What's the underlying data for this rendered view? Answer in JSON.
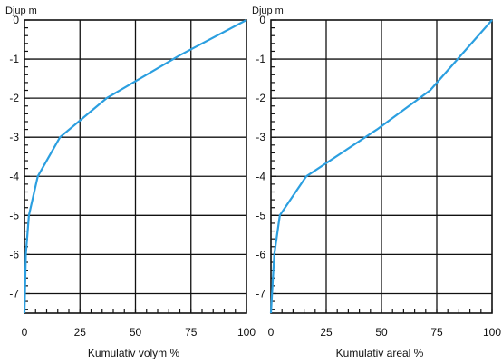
{
  "chart_data": [
    {
      "type": "line",
      "ylabel": "Djup m",
      "xlabel": "Kumulativ volym %",
      "xlim": [
        0,
        100
      ],
      "ylim": [
        -7.5,
        0
      ],
      "xticks": [
        0,
        25,
        50,
        75,
        100
      ],
      "yticks": [
        0,
        -1,
        -2,
        -3,
        -4,
        -5,
        -6,
        -7
      ],
      "grid": true,
      "series": [
        {
          "color": "#2b9fe0",
          "x": [
            100,
            70,
            37,
            16,
            6,
            2,
            0.6,
            0
          ],
          "y": [
            0,
            -0.9,
            -2,
            -3,
            -4,
            -5,
            -6,
            -7.5
          ]
        }
      ]
    },
    {
      "type": "line",
      "ylabel": "Djup m",
      "xlabel": "Kumulativ areal %",
      "xlim": [
        0,
        100
      ],
      "ylim": [
        -7.5,
        0
      ],
      "xticks": [
        0,
        25,
        50,
        75,
        100
      ],
      "yticks": [
        0,
        -1,
        -2,
        -3,
        -4,
        -5,
        -6,
        -7
      ],
      "grid": true,
      "series": [
        {
          "color": "#2b9fe0",
          "x": [
            100,
            72,
            48,
            16,
            4,
            1.5,
            0.5,
            0
          ],
          "y": [
            0,
            -1.8,
            -2.8,
            -4,
            -5,
            -6,
            -7,
            -7.5
          ]
        }
      ]
    }
  ]
}
